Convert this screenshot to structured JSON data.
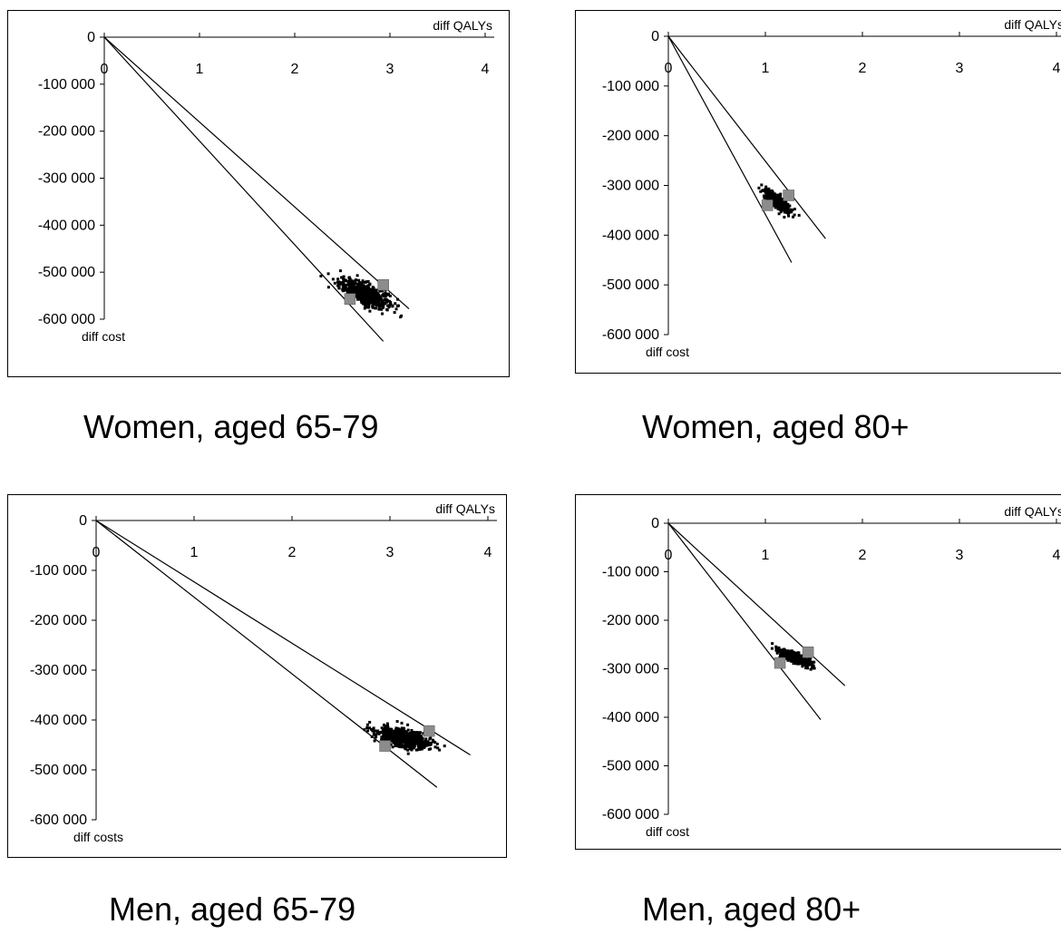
{
  "chart_data": [
    {
      "type": "scatter",
      "title": "",
      "caption": "Women, aged 65-79",
      "xlabel": "diff QALYs",
      "ylabel": "diff cost",
      "xlim": [
        0,
        4
      ],
      "ylim": [
        -600000,
        0
      ],
      "xticks": [
        "0",
        "1",
        "2",
        "3",
        "4"
      ],
      "yticks": [
        "0",
        "-100 000",
        "-200 000",
        "-300 000",
        "-400 000",
        "-500 000",
        "-600 000"
      ],
      "grid": false,
      "cloud": {
        "center": [
          2.73,
          -545000
        ],
        "spread_x": 0.13,
        "spread_y": 11000,
        "slope": -72000
      },
      "lines": [
        {
          "name": "",
          "points": [
            [
              0,
              0
            ],
            [
              3.2,
              -578000
            ]
          ]
        },
        {
          "name": "",
          "points": [
            [
              0,
              0
            ],
            [
              2.93,
              -647000
            ]
          ]
        }
      ],
      "markers": [
        [
          2.93,
          -527000
        ],
        [
          2.58,
          -557000
        ]
      ]
    },
    {
      "type": "scatter",
      "title": "",
      "caption": "Women, aged 80+",
      "xlabel": "diff QALYs",
      "ylabel": "diff cost",
      "xlim": [
        0,
        4
      ],
      "ylim": [
        -600000,
        0
      ],
      "xticks": [
        "0",
        "1",
        "2",
        "3",
        "4"
      ],
      "yticks": [
        "0",
        "-100 000",
        "-200 000",
        "-300 000",
        "-400 000",
        "-500 000",
        "-600 000"
      ],
      "grid": false,
      "cloud": {
        "center": [
          1.12,
          -332000
        ],
        "spread_x": 0.06,
        "spread_y": 6000,
        "slope": -140000
      },
      "lines": [
        {
          "name": "",
          "points": [
            [
              0,
              0
            ],
            [
              1.62,
              -407000
            ]
          ]
        },
        {
          "name": "",
          "points": [
            [
              0,
              0
            ],
            [
              1.27,
              -455000
            ]
          ]
        }
      ],
      "markers": [
        [
          1.24,
          -320000
        ],
        [
          1.02,
          -340000
        ]
      ]
    },
    {
      "type": "scatter",
      "title": "",
      "caption": "Men, aged 65-79",
      "xlabel": "diff QALYs",
      "ylabel": "diff costs",
      "xlim": [
        0,
        4
      ],
      "ylim": [
        -600000,
        0
      ],
      "xticks": [
        "0",
        "1",
        "2",
        "3",
        "4"
      ],
      "yticks": [
        "0",
        "-100 000",
        "-200 000",
        "-300 000",
        "-400 000",
        "-500 000",
        "-600 000"
      ],
      "grid": false,
      "cloud": {
        "center": [
          3.15,
          -437000
        ],
        "spread_x": 0.14,
        "spread_y": 9000,
        "slope": -40000
      },
      "lines": [
        {
          "name": "",
          "points": [
            [
              0,
              0
            ],
            [
              3.82,
              -470000
            ]
          ]
        },
        {
          "name": "",
          "points": [
            [
              0,
              0
            ],
            [
              3.48,
              -535000
            ]
          ]
        }
      ],
      "markers": [
        [
          3.4,
          -422000
        ],
        [
          2.95,
          -452000
        ]
      ]
    },
    {
      "type": "scatter",
      "title": "",
      "caption": "Men, aged 80+",
      "xlabel": "diff QALYs",
      "ylabel": "diff cost",
      "xlim": [
        0,
        4
      ],
      "ylim": [
        -600000,
        0
      ],
      "xticks": [
        "0",
        "1",
        "2",
        "3",
        "4"
      ],
      "yticks": [
        "0",
        "-100 000",
        "-200 000",
        "-300 000",
        "-400 000",
        "-500 000",
        "-600 000"
      ],
      "grid": false,
      "cloud": {
        "center": [
          1.3,
          -277000
        ],
        "spread_x": 0.08,
        "spread_y": 5000,
        "slope": -80000
      },
      "lines": [
        {
          "name": "",
          "points": [
            [
              0,
              0
            ],
            [
              1.82,
              -335000
            ]
          ]
        },
        {
          "name": "",
          "points": [
            [
              0,
              0
            ],
            [
              1.57,
              -405000
            ]
          ]
        }
      ],
      "markers": [
        [
          1.44,
          -266000
        ],
        [
          1.15,
          -288000
        ]
      ]
    }
  ]
}
